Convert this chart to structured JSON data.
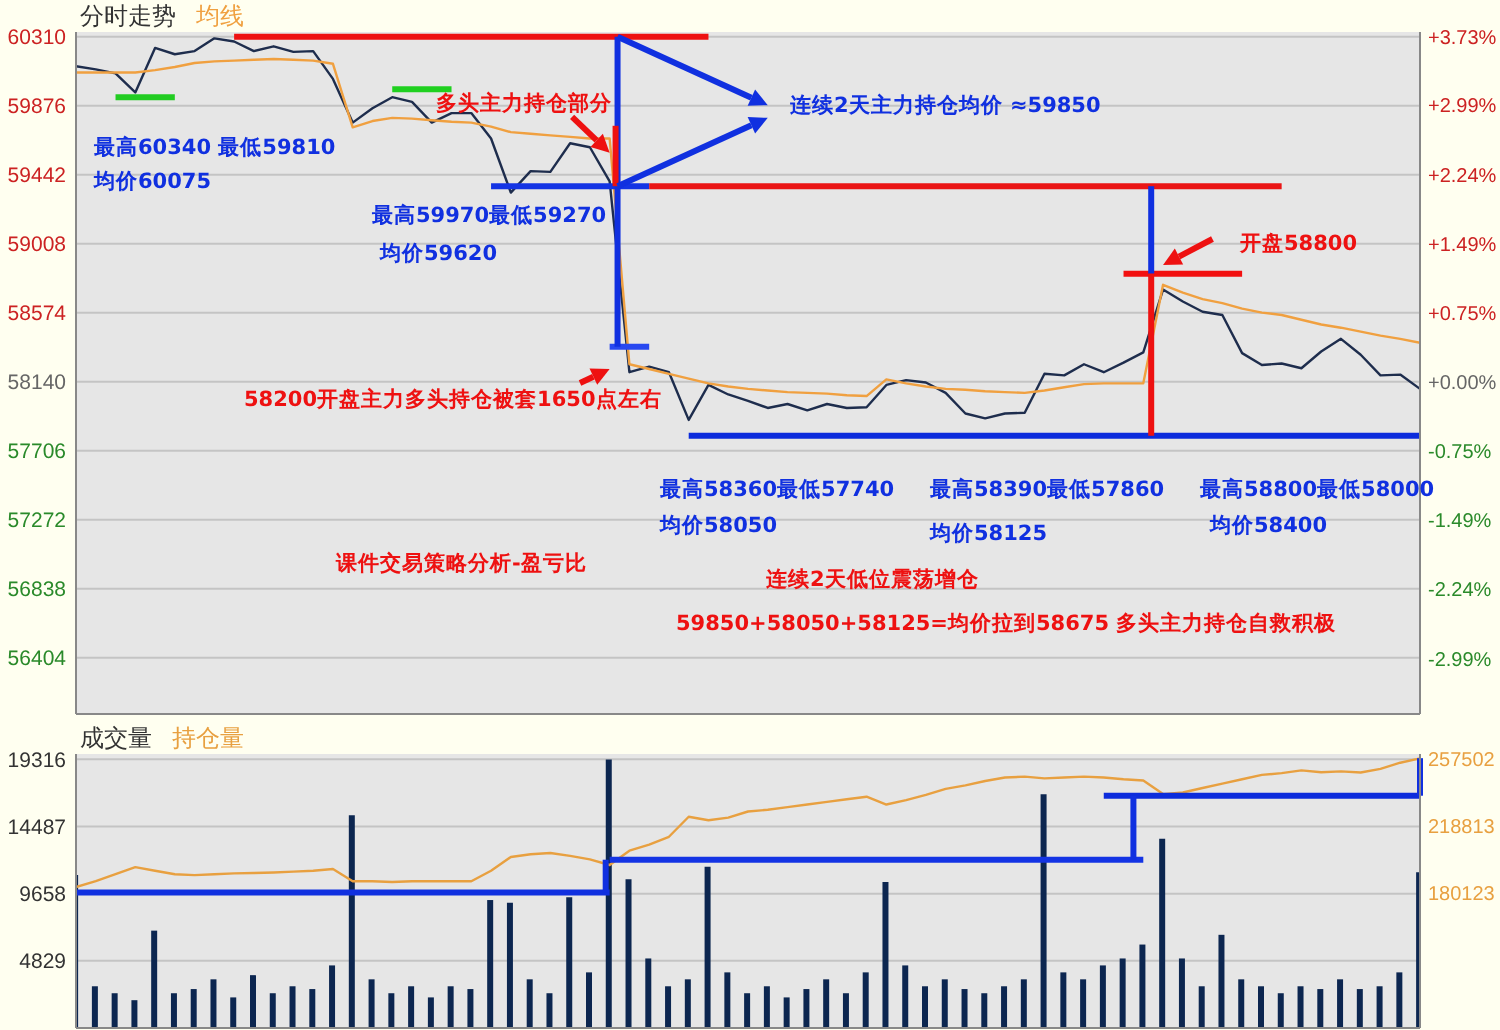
{
  "chart_data": [
    {
      "type": "line",
      "grid": "y",
      "tick_labels": "y",
      "categories": [
        null,
        null,
        null,
        null,
        null,
        null,
        null,
        null,
        null,
        null,
        null,
        null,
        null,
        null,
        null,
        null,
        null,
        null,
        null,
        null,
        null,
        null,
        null,
        null,
        null,
        null,
        null,
        null,
        null,
        null,
        null,
        null,
        null,
        null,
        null,
        null,
        null,
        null,
        null,
        null,
        null,
        null,
        null,
        null,
        null,
        null,
        null,
        null,
        null,
        null,
        null,
        null,
        null,
        null,
        null,
        null,
        null,
        null,
        null,
        null,
        null,
        null,
        null,
        null,
        null,
        null,
        null,
        null,
        null
      ],
      "ylim": [
        56050,
        60340
      ],
      "yticks": [
        60310,
        59876,
        59442,
        59008,
        58574,
        58140,
        57706,
        57272,
        56838,
        56404
      ],
      "y2lim": [
        -3.59,
        3.78
      ],
      "y2ticks": [
        {
          "value": 3.73,
          "label": "+3.73%"
        },
        {
          "value": 2.99,
          "label": "+2.99%"
        },
        {
          "value": 2.24,
          "label": "+2.24%"
        },
        {
          "value": 1.49,
          "label": "+1.49%"
        },
        {
          "value": 0.75,
          "label": "+0.75%"
        },
        {
          "value": 0,
          "label": "+0.00%"
        },
        {
          "value": -0.75,
          "label": "-0.75%"
        },
        {
          "value": -1.49,
          "label": "-1.49%"
        },
        {
          "value": -2.24,
          "label": "-2.24%"
        },
        {
          "value": -2.99,
          "label": "-2.99%"
        }
      ],
      "series": [
        {
          "name": "分时走势",
          "color": "#1e2d4d",
          "values": [
            60125,
            60105,
            60080,
            59960,
            60240,
            60200,
            60220,
            60300,
            60280,
            60220,
            60250,
            60215,
            60220,
            60045,
            59770,
            59860,
            59930,
            59900,
            59770,
            59830,
            59830,
            59670,
            59330,
            59465,
            59460,
            59640,
            59615,
            59400,
            58200,
            58235,
            58200,
            57900,
            58120,
            58060,
            58020,
            57975,
            58000,
            57960,
            58000,
            57975,
            57980,
            58120,
            58150,
            58135,
            58070,
            57940,
            57910,
            57940,
            57945,
            58190,
            58180,
            58250,
            58200,
            58260,
            58325,
            58720,
            58645,
            58580,
            58560,
            58320,
            58245,
            58255,
            58225,
            58330,
            58410,
            58310,
            58180,
            58185,
            58095
          ]
        },
        {
          "name": "均线",
          "color": "#f0a040",
          "values": [
            60085,
            60085,
            60085,
            60085,
            60100,
            60120,
            60145,
            60155,
            60160,
            60165,
            60170,
            60165,
            60160,
            60140,
            59740,
            59780,
            59800,
            59795,
            59785,
            59775,
            59770,
            59745,
            59710,
            59700,
            59690,
            59680,
            59670,
            59670,
            58250,
            58220,
            58190,
            58160,
            58130,
            58110,
            58095,
            58085,
            58075,
            58070,
            58065,
            58055,
            58050,
            58155,
            58130,
            58110,
            58095,
            58090,
            58080,
            58075,
            58070,
            58085,
            58105,
            58125,
            58130,
            58130,
            58130,
            58750,
            58700,
            58660,
            58635,
            58600,
            58575,
            58560,
            58530,
            58500,
            58480,
            58455,
            58430,
            58410,
            58385
          ]
        },
        {
          "color": "#22cc22",
          "values": [
            null,
            null,
            59930,
            59930,
            59930,
            59930,
            null,
            null,
            null,
            null,
            null,
            null,
            null,
            null,
            null,
            null,
            null,
            null,
            null,
            null,
            null,
            null,
            null,
            null,
            null,
            null,
            null,
            null,
            null,
            null,
            null,
            null,
            null,
            null,
            null,
            null,
            null,
            null,
            null,
            null,
            null,
            null,
            null,
            null,
            null,
            null,
            null,
            null,
            null,
            null,
            null,
            null,
            null,
            null,
            null,
            null,
            null,
            null,
            null,
            null,
            null,
            null,
            null,
            null,
            null,
            null,
            null,
            null,
            null
          ]
        },
        {
          "color": "#20d020",
          "values": [
            null,
            null,
            null,
            null,
            null,
            null,
            null,
            null,
            null,
            null,
            null,
            null,
            null,
            null,
            null,
            null,
            59980,
            59980,
            59980,
            59980,
            null,
            null,
            null,
            null,
            null,
            null,
            null,
            null,
            null,
            null,
            null,
            null,
            null,
            null,
            null,
            null,
            null,
            null,
            null,
            null,
            null,
            null,
            null,
            null,
            null,
            null,
            null,
            null,
            null,
            null,
            null,
            null,
            null,
            null,
            null,
            null,
            null,
            null,
            null,
            null,
            null,
            null,
            null,
            null,
            null,
            null,
            null,
            null,
            null
          ]
        },
        {
          "color": "#ee1111",
          "values": [
            null,
            null,
            null,
            null,
            null,
            null,
            null,
            null,
            60310,
            60310,
            60310,
            60310,
            60310,
            60310,
            60310,
            60310,
            60310,
            60310,
            60310,
            60310,
            60310,
            60310,
            60310,
            60310,
            60310,
            60310,
            60310,
            60310,
            60310,
            60310,
            60310,
            60310,
            60310,
            null,
            null,
            null,
            null,
            null,
            null,
            null,
            null,
            null,
            null,
            null,
            null,
            null,
            null,
            null,
            null,
            null,
            null,
            null,
            null,
            null,
            null,
            null,
            null,
            null,
            null,
            null,
            null,
            null,
            null,
            null,
            null,
            null,
            null,
            null,
            null
          ]
        },
        {
          "color": "#2848f0",
          "values": [
            null,
            null,
            null,
            null,
            null,
            null,
            null,
            null,
            null,
            null,
            null,
            null,
            null,
            null,
            null,
            null,
            null,
            null,
            null,
            null,
            null,
            null,
            null,
            null,
            null,
            null,
            null,
            58360,
            58360,
            58360,
            null,
            null,
            null,
            null,
            null,
            null,
            null,
            null,
            null,
            null,
            null,
            null,
            null,
            null,
            null,
            null,
            null,
            null,
            null,
            null,
            null,
            null,
            null,
            null,
            null,
            null,
            null,
            null,
            null,
            null,
            null,
            null,
            null,
            null,
            null,
            null,
            null,
            null,
            null
          ]
        },
        {
          "color": "#1434e4",
          "values": [
            null,
            null,
            null,
            null,
            null,
            null,
            null,
            null,
            null,
            null,
            null,
            null,
            null,
            null,
            null,
            null,
            null,
            null,
            null,
            null,
            null,
            59370,
            59370,
            59370,
            59370,
            59370,
            59370,
            59370,
            59370,
            59370,
            null,
            null,
            null,
            null,
            null,
            null,
            null,
            null,
            null,
            null,
            null,
            null,
            null,
            null,
            null,
            null,
            null,
            null,
            null,
            null,
            null,
            null,
            null,
            null,
            null,
            null,
            null,
            null,
            null,
            null,
            null,
            null,
            null,
            null,
            null,
            null,
            null,
            null,
            null
          ]
        },
        {
          "color": "#ea1515",
          "values": [
            null,
            null,
            null,
            null,
            null,
            null,
            null,
            null,
            null,
            null,
            null,
            null,
            null,
            null,
            null,
            null,
            null,
            null,
            null,
            null,
            null,
            null,
            null,
            null,
            null,
            null,
            null,
            null,
            null,
            59370,
            59370,
            59370,
            59370,
            59370,
            59370,
            59370,
            59370,
            59370,
            59370,
            59370,
            59370,
            59370,
            59370,
            59370,
            59370,
            59370,
            59370,
            59370,
            59370,
            59370,
            59370,
            59370,
            59370,
            59370,
            59370,
            59370,
            59370,
            59370,
            59370,
            59370,
            59370,
            59370,
            null,
            null,
            null,
            null,
            null,
            null,
            null
          ]
        },
        {
          "color": "#f21010",
          "values": [
            null,
            null,
            null,
            null,
            null,
            null,
            null,
            null,
            null,
            null,
            null,
            null,
            null,
            null,
            null,
            null,
            null,
            null,
            null,
            null,
            null,
            null,
            null,
            null,
            null,
            null,
            null,
            null,
            null,
            null,
            null,
            null,
            null,
            null,
            null,
            null,
            null,
            null,
            null,
            null,
            null,
            null,
            null,
            null,
            null,
            null,
            null,
            null,
            null,
            null,
            null,
            null,
            null,
            58820,
            58820,
            58820,
            58820,
            58820,
            58820,
            58820,
            null,
            null,
            null,
            null,
            null,
            null,
            null,
            null,
            null
          ]
        },
        {
          "color": "#0c2cdc",
          "values": [
            null,
            null,
            null,
            null,
            null,
            null,
            null,
            null,
            null,
            null,
            null,
            null,
            null,
            null,
            null,
            null,
            null,
            null,
            null,
            null,
            null,
            null,
            null,
            null,
            null,
            null,
            null,
            null,
            null,
            null,
            null,
            57800,
            57800,
            57800,
            57800,
            57800,
            57800,
            57800,
            57800,
            57800,
            57800,
            57800,
            57800,
            57800,
            57800,
            57800,
            57800,
            57800,
            57800,
            57800,
            57800,
            57800,
            57800,
            57800,
            57800,
            57800,
            57800,
            57800,
            57800,
            57800,
            57800,
            57800,
            57800,
            57800,
            57800,
            57800,
            57800,
            57800,
            57800
          ]
        }
      ],
      "annotations": [
        "最高60340 最低59810",
        "均价60075",
        "最高59970最低59270",
        "均价59620",
        "多头主力持仓部分",
        "连续2天主力持仓均价 ≈59850",
        "58200开盘主力多头持仓被套1650点左右",
        "开盘58800",
        "最高58360最低57740",
        "均价58050",
        "最高58390最低57860",
        "均价58125",
        "最高58800最低58000",
        "均价58400",
        "课件交易策略分析-盈亏比",
        "连续2天低位震荡增仓",
        "59850+58050+58125=均价拉到58675  多头主力持仓自救积极"
      ]
    },
    {
      "type": "bar",
      "grid": "y",
      "tick_labels": "y",
      "categories": [
        null,
        null,
        null,
        null,
        null,
        null,
        null,
        null,
        null,
        null,
        null,
        null,
        null,
        null,
        null,
        null,
        null,
        null,
        null,
        null,
        null,
        null,
        null,
        null,
        null,
        null,
        null,
        null,
        null,
        null,
        null,
        null,
        null,
        null,
        null,
        null,
        null,
        null,
        null,
        null,
        null,
        null,
        null,
        null,
        null,
        null,
        null,
        null,
        null,
        null,
        null,
        null,
        null,
        null,
        null,
        null,
        null,
        null,
        null,
        null,
        null,
        null,
        null,
        null,
        null,
        null,
        null,
        null,
        null
      ],
      "ylim": [
        0,
        19700
      ],
      "yticks": [
        19316,
        14487,
        9658,
        4829
      ],
      "y2lim": [
        102745,
        260000
      ],
      "y2ticks": [
        257502,
        218813,
        180123
      ],
      "series": [
        {
          "name": "成交量",
          "color": "#0c2650",
          "values": [
            11000,
            3000,
            2500,
            2000,
            7000,
            2500,
            2800,
            3500,
            2200,
            3800,
            2500,
            3000,
            2800,
            4500,
            15300,
            3500,
            2500,
            3000,
            2200,
            3000,
            2800,
            9200,
            9000,
            3500,
            2500,
            9400,
            4000,
            19300,
            10700,
            5000,
            3000,
            3500,
            11600,
            4000,
            2500,
            3000,
            2200,
            2800,
            3500,
            2500,
            4000,
            10500,
            4500,
            3000,
            3500,
            2800,
            2500,
            3000,
            3500,
            16800,
            4000,
            3500,
            4500,
            5000,
            6000,
            13600,
            5000,
            3000,
            6700,
            3500,
            3000,
            2500,
            3000,
            2800,
            3500,
            2800,
            3000,
            4000,
            11200
          ]
        },
        {
          "name": "持仓量",
          "type": "line",
          "axis": "y2",
          "color": "#e8a040",
          "values": [
            183600,
            187000,
            191000,
            195100,
            193000,
            191000,
            190500,
            191000,
            191500,
            191700,
            192000,
            192500,
            193000,
            194000,
            187000,
            187000,
            186500,
            187000,
            187000,
            187000,
            187000,
            193000,
            200900,
            202500,
            203200,
            201500,
            199500,
            196300,
            204500,
            208000,
            212500,
            224000,
            222000,
            223500,
            227000,
            228000,
            229500,
            231000,
            232500,
            234000,
            235500,
            231000,
            233500,
            236500,
            240000,
            242000,
            244500,
            246500,
            247000,
            246000,
            246500,
            247000,
            246500,
            245500,
            244800,
            237000,
            237900,
            240500,
            243000,
            245500,
            248000,
            249000,
            250600,
            249500,
            250000,
            249400,
            251500,
            255000,
            257500
          ]
        },
        {
          "type": "line",
          "color": "#1030e0",
          "values": [
            9750,
            9750,
            9750,
            9750,
            9750,
            9750,
            9750,
            9750,
            9750,
            9750,
            9750,
            9750,
            9750,
            9750,
            9750,
            9750,
            9750,
            9750,
            9750,
            9750,
            9750,
            9750,
            9750,
            9750,
            9750,
            9750,
            9750,
            9750,
            null,
            null,
            null,
            null,
            null,
            null,
            null,
            null,
            null,
            null,
            null,
            null,
            null,
            null,
            null,
            null,
            null,
            null,
            null,
            null,
            null,
            null,
            null,
            null,
            null,
            null,
            null,
            null,
            null,
            null,
            null,
            null,
            null,
            null,
            null,
            null,
            null,
            null,
            null,
            null,
            null
          ]
        },
        {
          "type": "line",
          "color": "#1434e4",
          "values": [
            null,
            null,
            null,
            null,
            null,
            null,
            null,
            null,
            null,
            null,
            null,
            null,
            null,
            null,
            null,
            null,
            null,
            null,
            null,
            null,
            null,
            null,
            null,
            null,
            null,
            null,
            null,
            12100,
            12100,
            12100,
            12100,
            12100,
            12100,
            12100,
            12100,
            12100,
            12100,
            12100,
            12100,
            12100,
            12100,
            12100,
            12100,
            12100,
            12100,
            12100,
            12100,
            12100,
            12100,
            12100,
            12100,
            12100,
            12100,
            12100,
            12100,
            null,
            null,
            null,
            null,
            null,
            null,
            null,
            null,
            null,
            null,
            null,
            null,
            null,
            null
          ]
        },
        {
          "type": "line",
          "color": "#0c2cdc",
          "values": [
            null,
            null,
            null,
            null,
            null,
            null,
            null,
            null,
            null,
            null,
            null,
            null,
            null,
            null,
            null,
            null,
            null,
            null,
            null,
            null,
            null,
            null,
            null,
            null,
            null,
            null,
            null,
            null,
            null,
            null,
            null,
            null,
            null,
            null,
            null,
            null,
            null,
            null,
            null,
            null,
            null,
            null,
            null,
            null,
            null,
            null,
            null,
            null,
            null,
            null,
            null,
            null,
            16700,
            16700,
            16700,
            16700,
            16700,
            16700,
            16700,
            16700,
            16700,
            16700,
            16700,
            16700,
            16700,
            16700,
            16700,
            16700,
            16700
          ]
        }
      ]
    }
  ]
}
